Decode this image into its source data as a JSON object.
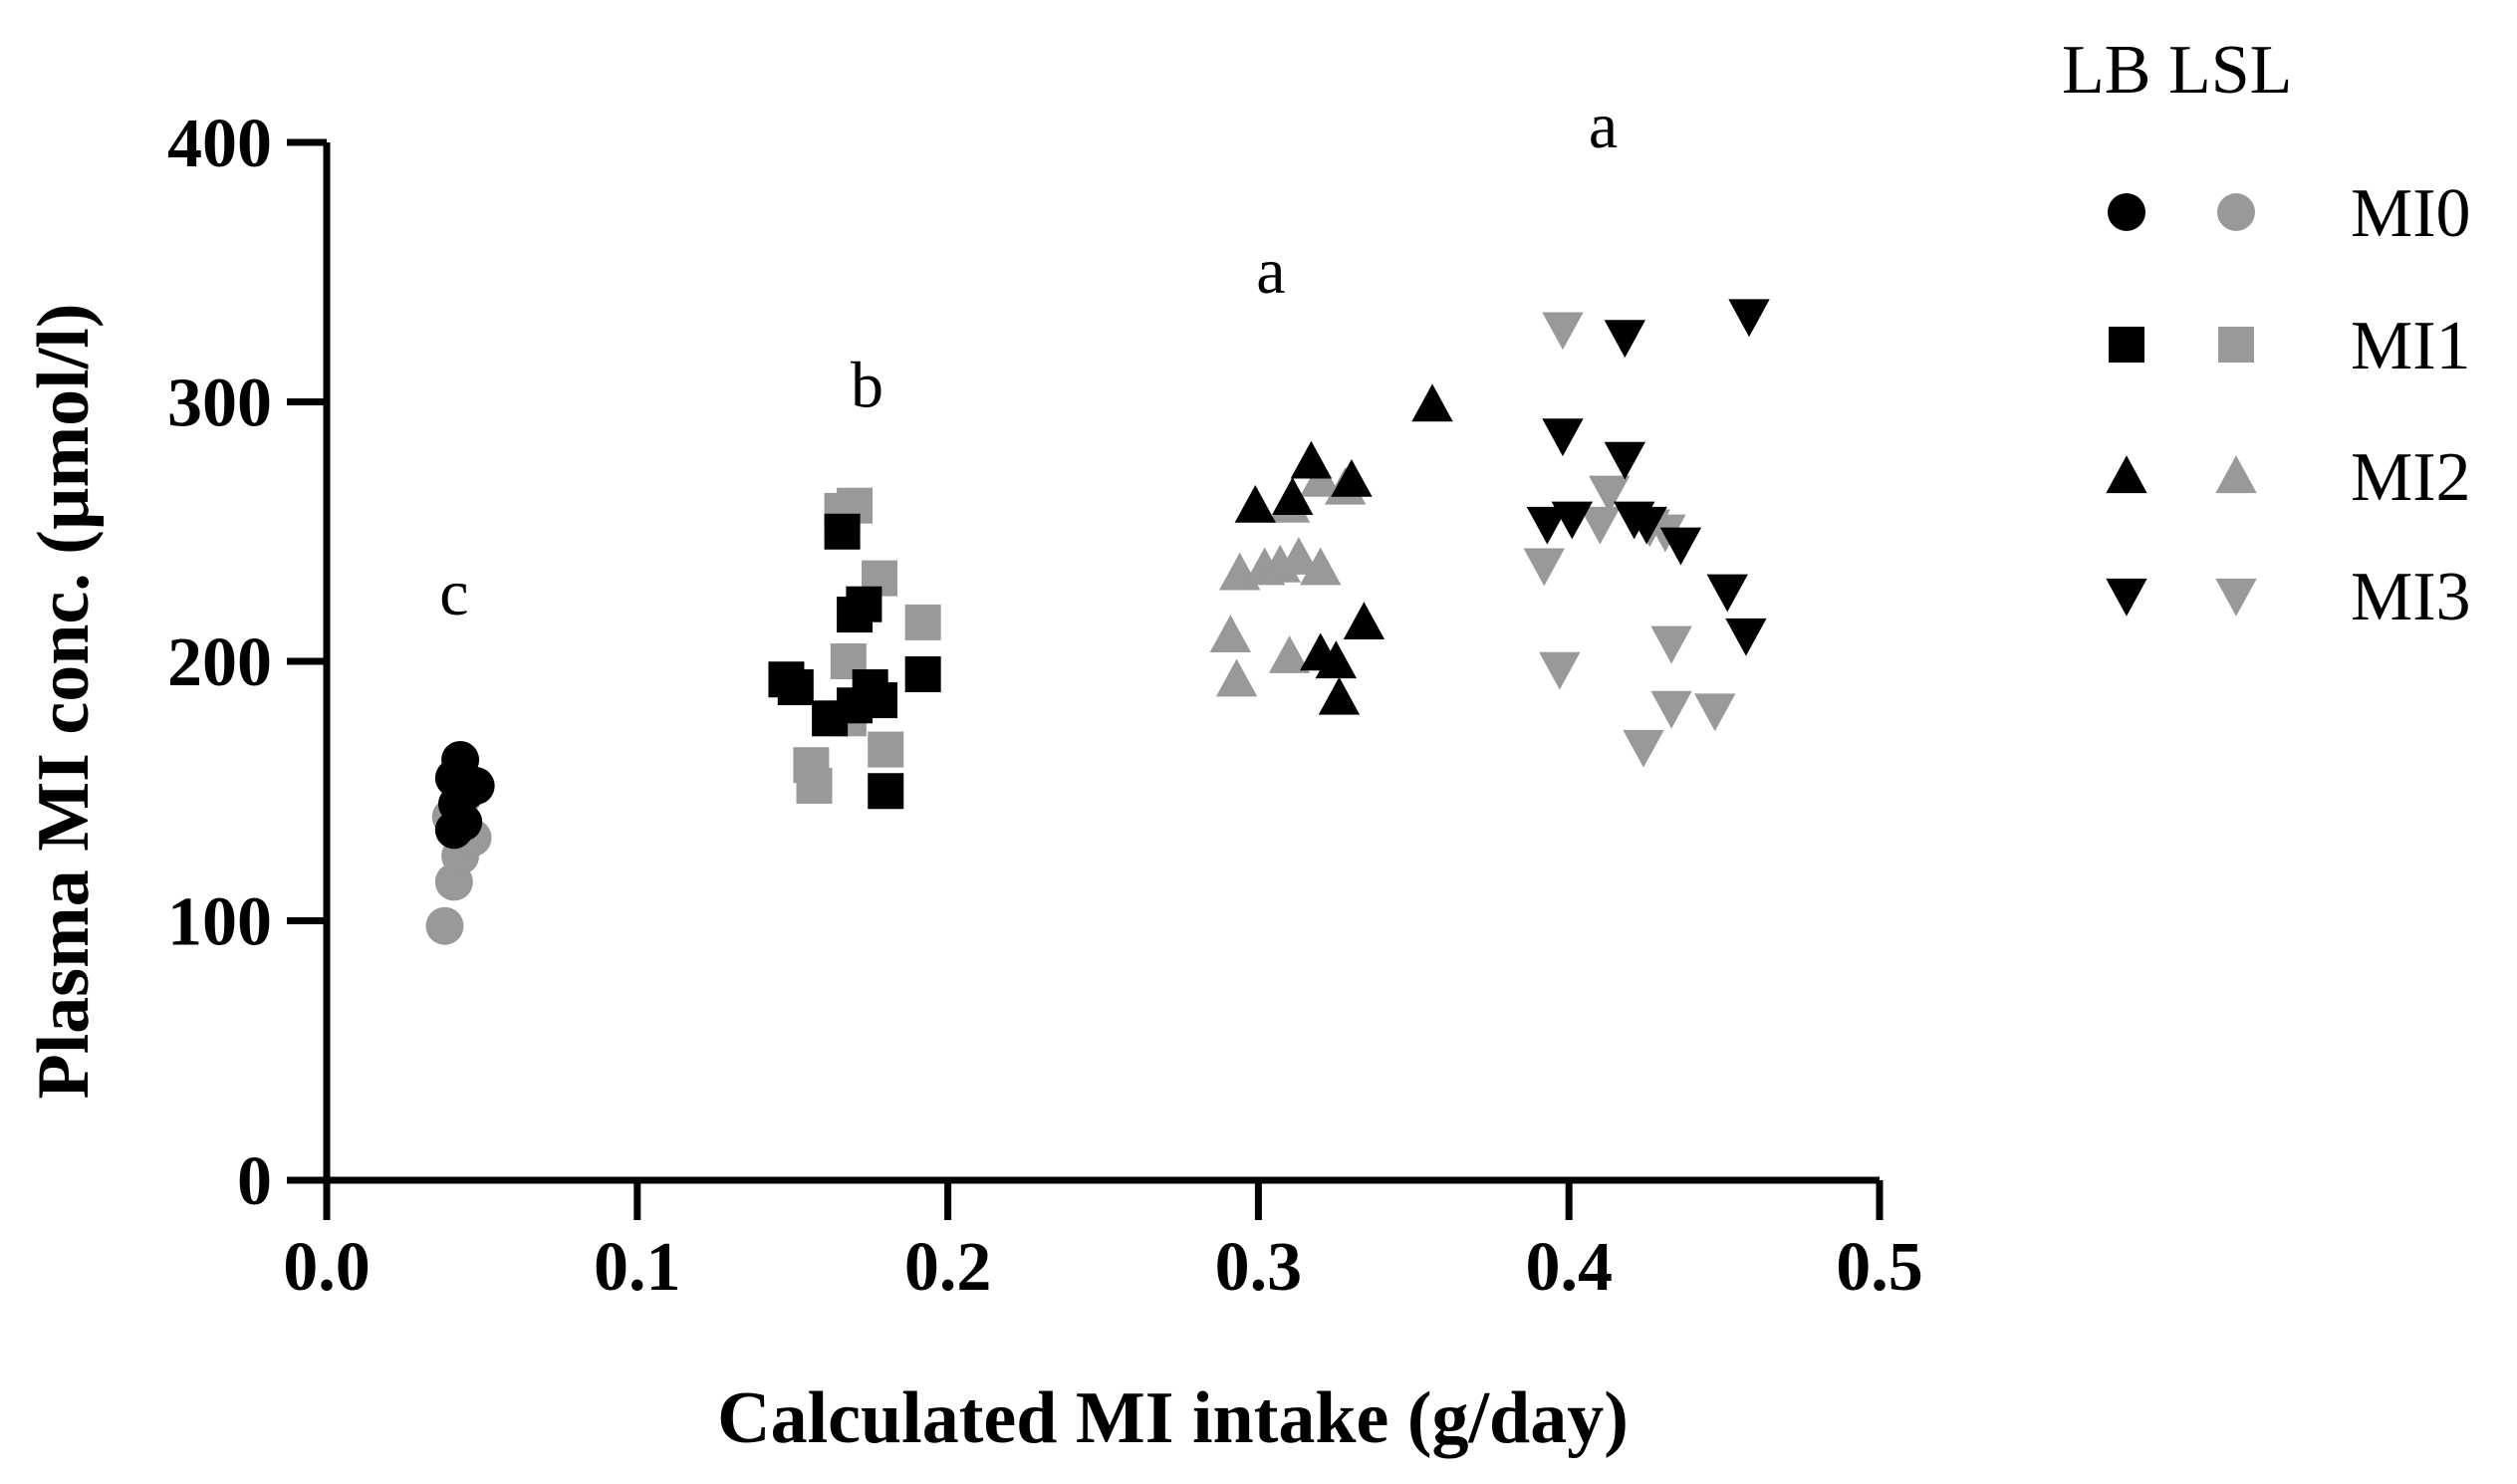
{
  "chart_data": {
    "type": "scatter",
    "xlabel": "Calculated MI intake (g/day)",
    "ylabel": "Plasma MI  conc. (µmol/l)",
    "xlim": [
      0,
      0.5
    ],
    "ylim": [
      0,
      400
    ],
    "x_ticks": [
      "0.0",
      "0.1",
      "0.2",
      "0.3",
      "0.4",
      "0.5"
    ],
    "y_ticks": [
      "0",
      "100",
      "200",
      "300",
      "400"
    ],
    "grid": false,
    "legend": {
      "position": "right",
      "column_headers": [
        "LB",
        "LSL"
      ],
      "rows": [
        {
          "label": "MI0",
          "shape": "circle"
        },
        {
          "label": "MI1",
          "shape": "square"
        },
        {
          "label": "MI2",
          "shape": "triangle-up"
        },
        {
          "label": "MI3",
          "shape": "triangle-down"
        }
      ]
    },
    "colors": {
      "LB": "#000000",
      "LSL": "#999999"
    },
    "annotations": [
      {
        "text": "c",
        "x": 0.041,
        "y": 218
      },
      {
        "text": "b",
        "x": 0.174,
        "y": 298
      },
      {
        "text": "a",
        "x": 0.304,
        "y": 342
      },
      {
        "text": "a",
        "x": 0.411,
        "y": 398
      }
    ],
    "series": [
      {
        "name": "MI0",
        "strain": "LSL",
        "shape": "circle",
        "points": [
          [
            0.038,
            98
          ],
          [
            0.041,
            115
          ],
          [
            0.043,
            125
          ],
          [
            0.047,
            132
          ],
          [
            0.04,
            140
          ],
          [
            0.044,
            148
          ]
        ]
      },
      {
        "name": "MI0",
        "strain": "LB",
        "shape": "circle",
        "points": [
          [
            0.041,
            135
          ],
          [
            0.044,
            138
          ],
          [
            0.042,
            145
          ],
          [
            0.045,
            150
          ],
          [
            0.048,
            152
          ],
          [
            0.043,
            162
          ],
          [
            0.041,
            155
          ]
        ]
      },
      {
        "name": "MI1",
        "strain": "LSL",
        "shape": "square",
        "points": [
          [
            0.157,
            152
          ],
          [
            0.156,
            160
          ],
          [
            0.18,
            166
          ],
          [
            0.168,
            178
          ],
          [
            0.168,
            200
          ],
          [
            0.178,
            232
          ],
          [
            0.192,
            215
          ],
          [
            0.166,
            258
          ],
          [
            0.17,
            260
          ]
        ]
      },
      {
        "name": "MI1",
        "strain": "LB",
        "shape": "square",
        "points": [
          [
            0.148,
            193
          ],
          [
            0.151,
            190
          ],
          [
            0.162,
            178
          ],
          [
            0.17,
            183
          ],
          [
            0.175,
            190
          ],
          [
            0.178,
            185
          ],
          [
            0.18,
            150
          ],
          [
            0.192,
            195
          ],
          [
            0.17,
            218
          ],
          [
            0.173,
            222
          ],
          [
            0.166,
            250
          ]
        ]
      },
      {
        "name": "MI2",
        "strain": "LSL",
        "shape": "triangle-up",
        "points": [
          [
            0.291,
            210
          ],
          [
            0.293,
            193
          ],
          [
            0.294,
            234
          ],
          [
            0.302,
            236
          ],
          [
            0.307,
            237
          ],
          [
            0.31,
            260
          ],
          [
            0.313,
            240
          ],
          [
            0.31,
            202
          ],
          [
            0.32,
            236
          ],
          [
            0.328,
            267
          ],
          [
            0.32,
            270
          ]
        ]
      },
      {
        "name": "MI2",
        "strain": "LB",
        "shape": "triangle-up",
        "points": [
          [
            0.299,
            260
          ],
          [
            0.311,
            263
          ],
          [
            0.317,
            277
          ],
          [
            0.33,
            270
          ],
          [
            0.32,
            203
          ],
          [
            0.325,
            200
          ],
          [
            0.326,
            186
          ],
          [
            0.334,
            215
          ],
          [
            0.356,
            299
          ]
        ]
      },
      {
        "name": "MI3",
        "strain": "LSL",
        "shape": "triangle-down",
        "points": [
          [
            0.392,
            237
          ],
          [
            0.397,
            197
          ],
          [
            0.398,
            328
          ],
          [
            0.41,
            253
          ],
          [
            0.413,
            265
          ],
          [
            0.426,
            252
          ],
          [
            0.431,
            250
          ],
          [
            0.433,
            207
          ],
          [
            0.424,
            167
          ],
          [
            0.433,
            182
          ],
          [
            0.447,
            181
          ]
        ]
      },
      {
        "name": "MI3",
        "strain": "LB",
        "shape": "triangle-down",
        "points": [
          [
            0.393,
            253
          ],
          [
            0.401,
            255
          ],
          [
            0.398,
            287
          ],
          [
            0.418,
            325
          ],
          [
            0.418,
            278
          ],
          [
            0.421,
            255
          ],
          [
            0.425,
            253
          ],
          [
            0.436,
            245
          ],
          [
            0.451,
            227
          ],
          [
            0.457,
            210
          ],
          [
            0.458,
            333
          ]
        ]
      }
    ]
  }
}
